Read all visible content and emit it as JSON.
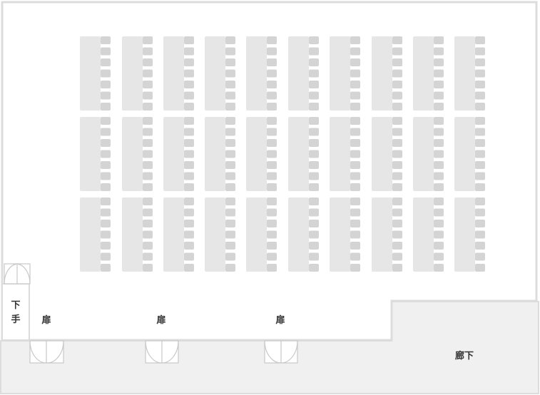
{
  "colors": {
    "background": "#ffffff",
    "corridor_fill": "#f0f0f0",
    "wall": "#dcdcdc",
    "table_fill": "#e6e6e6",
    "chair_fill": "#d4d4d4",
    "door_line": "#c8c8c8",
    "label": "#333333"
  },
  "labels": {
    "stage_side": [
      "下",
      "手"
    ],
    "doors": [
      "扉",
      "扉",
      "扉"
    ],
    "corridor": "廊下"
  },
  "layout": {
    "columns": 10,
    "rows": 3,
    "chairs_per_table": 7
  }
}
